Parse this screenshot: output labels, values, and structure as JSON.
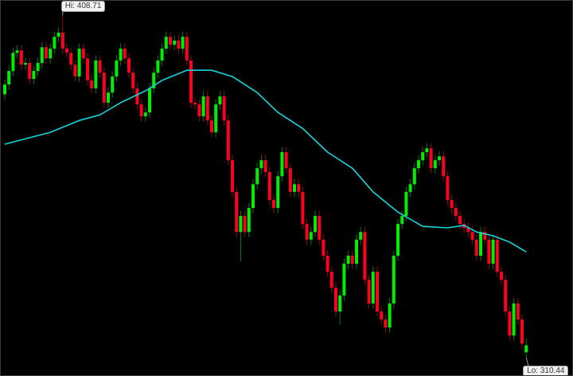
{
  "chart_data": {
    "type": "candlestick",
    "title": "",
    "background": "#000000",
    "colors": {
      "up": "#00ee00",
      "down": "#ff0020",
      "up_wick": "#0a7a0a",
      "down_wick": "#8a0a14",
      "moving_average": "#14d6dc"
    },
    "hi_label": "Hi: 408.71",
    "lo_label": "Lo: 310.44",
    "hi": 408.71,
    "lo": 310.44,
    "candles": [
      [
        386.0,
        390.3,
        384.5,
        388.8
      ],
      [
        388.8,
        394.2,
        387.3,
        392.7
      ],
      [
        392.7,
        399.4,
        391.2,
        397.9
      ],
      [
        397.9,
        400.1,
        396.4,
        398.6
      ],
      [
        398.6,
        400.1,
        393.0,
        394.5
      ],
      [
        394.5,
        396.5,
        393.0,
        395.0
      ],
      [
        395.0,
        396.5,
        388.9,
        390.4
      ],
      [
        390.4,
        394.2,
        388.9,
        392.7
      ],
      [
        392.7,
        396.5,
        391.2,
        395.0
      ],
      [
        395.0,
        401.0,
        393.5,
        399.5
      ],
      [
        399.5,
        401.0,
        394.8,
        396.3
      ],
      [
        396.3,
        400.6,
        394.8,
        399.1
      ],
      [
        399.1,
        404.0,
        397.6,
        402.5
      ],
      [
        402.5,
        405.2,
        401.0,
        403.7
      ],
      [
        403.7,
        408.71,
        397.6,
        399.1
      ],
      [
        399.1,
        400.6,
        396.4,
        397.9
      ],
      [
        397.9,
        399.4,
        393.0,
        394.5
      ],
      [
        394.5,
        396.0,
        389.6,
        391.1
      ],
      [
        391.1,
        400.6,
        389.6,
        399.1
      ],
      [
        399.1,
        400.6,
        394.8,
        396.3
      ],
      [
        396.3,
        397.8,
        388.5,
        390.0
      ],
      [
        390.0,
        391.5,
        386.2,
        387.7
      ],
      [
        387.7,
        397.2,
        386.2,
        395.7
      ],
      [
        395.7,
        397.2,
        390.7,
        392.2
      ],
      [
        392.2,
        393.7,
        382.1,
        383.6
      ],
      [
        383.6,
        388.0,
        382.1,
        386.5
      ],
      [
        386.5,
        392.6,
        385.0,
        391.1
      ],
      [
        391.1,
        397.2,
        389.6,
        395.7
      ],
      [
        395.7,
        400.6,
        394.2,
        399.1
      ],
      [
        399.1,
        400.6,
        394.8,
        396.3
      ],
      [
        396.3,
        397.8,
        390.7,
        392.2
      ],
      [
        392.2,
        393.7,
        386.2,
        387.7
      ],
      [
        387.7,
        389.2,
        381.6,
        383.1
      ],
      [
        383.1,
        384.6,
        378.2,
        379.7
      ],
      [
        379.7,
        382.3,
        378.2,
        380.8
      ],
      [
        380.8,
        389.2,
        379.3,
        387.7
      ],
      [
        387.7,
        393.7,
        386.2,
        392.2
      ],
      [
        392.2,
        397.2,
        390.7,
        395.7
      ],
      [
        395.7,
        400.6,
        394.2,
        399.1
      ],
      [
        399.1,
        404.0,
        397.6,
        402.5
      ],
      [
        402.5,
        404.0,
        398.7,
        400.2
      ],
      [
        400.2,
        402.9,
        398.7,
        401.4
      ],
      [
        401.4,
        402.9,
        397.6,
        399.1
      ],
      [
        399.1,
        404.0,
        397.6,
        402.5
      ],
      [
        402.5,
        404.0,
        394.2,
        395.7
      ],
      [
        395.7,
        397.2,
        382.1,
        383.6
      ],
      [
        383.6,
        385.1,
        381.6,
        383.1
      ],
      [
        383.1,
        384.6,
        378.2,
        379.7
      ],
      [
        379.7,
        386.9,
        378.2,
        385.4
      ],
      [
        385.4,
        386.9,
        377.0,
        378.5
      ],
      [
        378.5,
        380.0,
        373.6,
        375.1
      ],
      [
        375.1,
        384.6,
        373.6,
        383.1
      ],
      [
        383.1,
        386.9,
        381.6,
        385.4
      ],
      [
        385.4,
        386.9,
        377.0,
        378.5
      ],
      [
        378.5,
        380.0,
        365.6,
        367.1
      ],
      [
        367.1,
        368.6,
        356.5,
        358.0
      ],
      [
        358.0,
        359.5,
        345.0,
        346.5
      ],
      [
        346.5,
        352.6,
        338.0,
        351.1
      ],
      [
        351.1,
        352.6,
        345.0,
        346.5
      ],
      [
        346.5,
        354.9,
        345.0,
        353.4
      ],
      [
        353.4,
        361.7,
        351.9,
        360.2
      ],
      [
        360.2,
        366.3,
        358.7,
        364.8
      ],
      [
        364.8,
        368.6,
        363.3,
        367.1
      ],
      [
        367.1,
        368.6,
        362.2,
        363.7
      ],
      [
        363.7,
        365.2,
        354.2,
        355.7
      ],
      [
        355.7,
        357.2,
        351.9,
        353.4
      ],
      [
        353.4,
        364.0,
        351.9,
        362.5
      ],
      [
        362.5,
        370.9,
        361.0,
        369.4
      ],
      [
        369.4,
        370.9,
        363.3,
        364.8
      ],
      [
        364.8,
        366.3,
        356.5,
        358.0
      ],
      [
        358.0,
        361.7,
        356.5,
        360.2
      ],
      [
        360.2,
        361.7,
        356.5,
        358.0
      ],
      [
        358.0,
        359.5,
        347.3,
        348.8
      ],
      [
        348.8,
        350.3,
        342.8,
        344.3
      ],
      [
        344.3,
        348.0,
        342.8,
        346.5
      ],
      [
        346.5,
        352.6,
        345.0,
        351.1
      ],
      [
        351.1,
        352.6,
        342.8,
        344.3
      ],
      [
        344.3,
        345.8,
        338.2,
        339.7
      ],
      [
        339.7,
        341.2,
        333.6,
        335.1
      ],
      [
        335.1,
        336.6,
        329.0,
        330.5
      ],
      [
        330.5,
        332.0,
        322.2,
        323.7
      ],
      [
        323.7,
        329.8,
        320.0,
        328.3
      ],
      [
        328.3,
        338.9,
        326.8,
        337.4
      ],
      [
        337.4,
        341.2,
        335.9,
        339.7
      ],
      [
        339.7,
        341.2,
        335.9,
        337.4
      ],
      [
        337.4,
        345.8,
        335.9,
        344.3
      ],
      [
        344.3,
        348.0,
        342.8,
        346.5
      ],
      [
        346.5,
        348.0,
        331.3,
        332.8
      ],
      [
        332.8,
        334.3,
        324.5,
        326.0
      ],
      [
        326.0,
        336.6,
        324.5,
        335.1
      ],
      [
        335.1,
        336.6,
        322.2,
        323.7
      ],
      [
        323.7,
        325.2,
        319.9,
        321.4
      ],
      [
        321.4,
        322.9,
        317.6,
        319.1
      ],
      [
        319.1,
        327.5,
        317.6,
        326.0
      ],
      [
        326.0,
        341.2,
        324.5,
        339.7
      ],
      [
        339.7,
        350.3,
        338.2,
        348.8
      ],
      [
        348.8,
        352.6,
        347.3,
        351.1
      ],
      [
        351.1,
        359.5,
        349.6,
        358.0
      ],
      [
        358.0,
        361.7,
        356.5,
        360.2
      ],
      [
        360.2,
        366.3,
        358.7,
        364.8
      ],
      [
        364.8,
        368.6,
        363.3,
        367.1
      ],
      [
        367.1,
        370.9,
        365.6,
        369.4
      ],
      [
        369.4,
        372.0,
        367.9,
        370.5
      ],
      [
        370.5,
        372.0,
        363.3,
        364.8
      ],
      [
        364.8,
        368.6,
        363.3,
        367.1
      ],
      [
        367.1,
        369.7,
        365.6,
        368.2
      ],
      [
        368.2,
        369.7,
        361.0,
        362.5
      ],
      [
        362.5,
        364.0,
        354.2,
        355.7
      ],
      [
        355.7,
        357.2,
        351.9,
        353.4
      ],
      [
        353.4,
        354.9,
        349.6,
        351.1
      ],
      [
        351.1,
        352.6,
        347.3,
        348.8
      ],
      [
        348.8,
        350.3,
        346.2,
        347.7
      ],
      [
        347.7,
        349.2,
        345.0,
        346.5
      ],
      [
        346.5,
        348.0,
        342.8,
        344.3
      ],
      [
        344.3,
        345.8,
        338.2,
        339.7
      ],
      [
        339.7,
        348.0,
        338.2,
        346.5
      ],
      [
        346.5,
        348.0,
        342.8,
        344.3
      ],
      [
        344.3,
        345.8,
        335.9,
        337.4
      ],
      [
        337.4,
        345.8,
        335.9,
        344.3
      ],
      [
        344.3,
        345.8,
        333.6,
        335.1
      ],
      [
        335.1,
        336.6,
        331.3,
        332.8
      ],
      [
        332.8,
        334.3,
        322.2,
        323.7
      ],
      [
        323.7,
        325.2,
        315.3,
        316.8
      ],
      [
        316.8,
        327.5,
        315.3,
        326.0
      ],
      [
        326.0,
        327.5,
        319.9,
        321.4
      ],
      [
        321.4,
        322.9,
        313.0,
        314.5
      ],
      [
        312.0,
        316.0,
        310.44,
        314.0
      ]
    ],
    "moving_average": [
      [
        1,
        371.7
      ],
      [
        12,
        375.1
      ],
      [
        19,
        378.5
      ],
      [
        24,
        380.1
      ],
      [
        29,
        383.6
      ],
      [
        35,
        387.0
      ],
      [
        39,
        390.0
      ],
      [
        45,
        392.9
      ],
      [
        51,
        392.9
      ],
      [
        56,
        391.1
      ],
      [
        62,
        386.5
      ],
      [
        67,
        380.8
      ],
      [
        73,
        376.2
      ],
      [
        79,
        369.4
      ],
      [
        85,
        364.8
      ],
      [
        90,
        358.0
      ],
      [
        96,
        352.2
      ],
      [
        102,
        348.1
      ],
      [
        108,
        347.7
      ],
      [
        112,
        348.4
      ],
      [
        115,
        346.5
      ],
      [
        119,
        345.4
      ],
      [
        123,
        343.6
      ],
      [
        127,
        340.8
      ]
    ]
  }
}
